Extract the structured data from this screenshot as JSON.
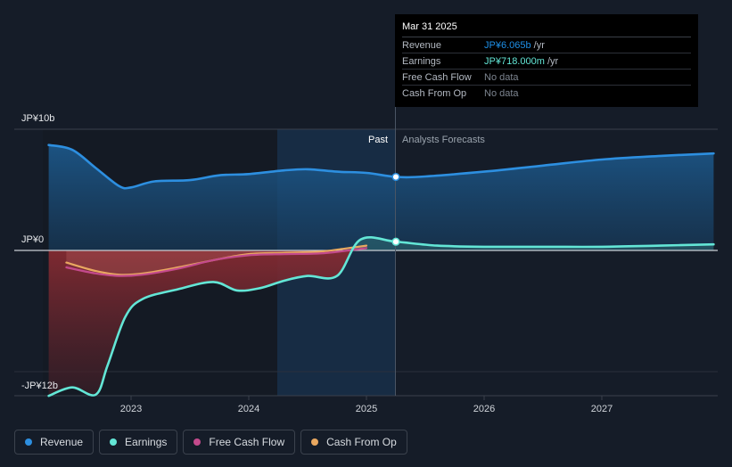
{
  "chart_data": {
    "type": "area",
    "y_axis": {
      "top_label": "JP¥10b",
      "zero_label": "JP¥0",
      "bottom_label": "-JP¥12b",
      "ylim": [
        -12,
        10
      ]
    },
    "x_ticks": [
      "2023",
      "2024",
      "2025",
      "2026",
      "2027"
    ],
    "past_label": "Past",
    "forecast_label": "Analysts Forecasts",
    "series": [
      {
        "name": "Revenue",
        "color": "#2d8fe0",
        "points": [
          [
            2022.3,
            8.7
          ],
          [
            2022.5,
            8.3
          ],
          [
            2022.7,
            6.8
          ],
          [
            2022.9,
            5.3
          ],
          [
            2023.0,
            5.2
          ],
          [
            2023.2,
            5.7
          ],
          [
            2023.5,
            5.8
          ],
          [
            2023.75,
            6.2
          ],
          [
            2024.0,
            6.3
          ],
          [
            2024.3,
            6.6
          ],
          [
            2024.5,
            6.7
          ],
          [
            2024.75,
            6.5
          ],
          [
            2025.0,
            6.4
          ],
          [
            2025.25,
            6.065
          ],
          [
            2025.5,
            6.1
          ],
          [
            2026.0,
            6.5
          ],
          [
            2026.5,
            7.0
          ],
          [
            2027.0,
            7.5
          ],
          [
            2027.5,
            7.8
          ],
          [
            2027.95,
            8.0
          ]
        ]
      },
      {
        "name": "Earnings",
        "color": "#63e6d6",
        "points": [
          [
            2022.3,
            -12.0
          ],
          [
            2022.5,
            -11.3
          ],
          [
            2022.7,
            -11.9
          ],
          [
            2022.8,
            -9.5
          ],
          [
            2022.95,
            -5.5
          ],
          [
            2023.1,
            -4.0
          ],
          [
            2023.4,
            -3.2
          ],
          [
            2023.7,
            -2.6
          ],
          [
            2023.9,
            -3.3
          ],
          [
            2024.1,
            -3.1
          ],
          [
            2024.3,
            -2.5
          ],
          [
            2024.5,
            -2.1
          ],
          [
            2024.75,
            -2.1
          ],
          [
            2024.95,
            0.9
          ],
          [
            2025.25,
            0.718
          ],
          [
            2025.6,
            0.4
          ],
          [
            2026.0,
            0.3
          ],
          [
            2026.5,
            0.3
          ],
          [
            2027.0,
            0.3
          ],
          [
            2027.5,
            0.4
          ],
          [
            2027.95,
            0.5
          ]
        ]
      },
      {
        "name": "Free Cash Flow",
        "color": "#c34a8c",
        "points": [
          [
            2022.45,
            -1.4
          ],
          [
            2022.7,
            -1.9
          ],
          [
            2022.9,
            -2.1
          ],
          [
            2023.1,
            -2.0
          ],
          [
            2023.4,
            -1.5
          ],
          [
            2023.7,
            -0.8
          ],
          [
            2024.0,
            -0.4
          ],
          [
            2024.3,
            -0.3
          ],
          [
            2024.6,
            -0.25
          ],
          [
            2024.85,
            0.0
          ],
          [
            2025.0,
            0.2
          ]
        ]
      },
      {
        "name": "Cash From Op",
        "color": "#e9a860",
        "points": [
          [
            2022.45,
            -1.0
          ],
          [
            2022.7,
            -1.7
          ],
          [
            2022.9,
            -2.0
          ],
          [
            2023.1,
            -1.9
          ],
          [
            2023.4,
            -1.4
          ],
          [
            2023.7,
            -0.8
          ],
          [
            2024.0,
            -0.3
          ],
          [
            2024.3,
            -0.2
          ],
          [
            2024.6,
            -0.1
          ],
          [
            2024.85,
            0.2
          ],
          [
            2025.0,
            0.4
          ]
        ]
      }
    ]
  },
  "tooltip": {
    "date": "Mar 31 2025",
    "rows": [
      {
        "label": "Revenue",
        "value": "JP¥6.065b",
        "unit": "/yr"
      },
      {
        "label": "Earnings",
        "value": "JP¥718.000m",
        "unit": "/yr"
      },
      {
        "label": "Free Cash Flow",
        "value": "No data",
        "unit": ""
      },
      {
        "label": "Cash From Op",
        "value": "No data",
        "unit": ""
      }
    ]
  },
  "legend": [
    {
      "label": "Revenue",
      "color": "#2d8fe0"
    },
    {
      "label": "Earnings",
      "color": "#63e6d6"
    },
    {
      "label": "Free Cash Flow",
      "color": "#c34a8c"
    },
    {
      "label": "Cash From Op",
      "color": "#e9a860"
    }
  ]
}
